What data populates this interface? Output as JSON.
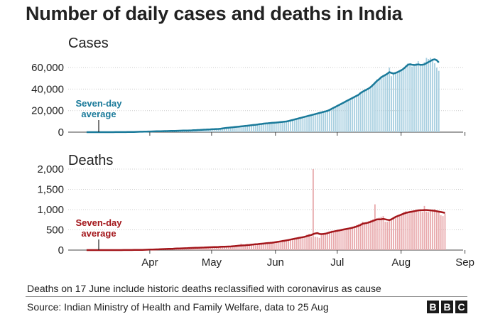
{
  "title": "Number of daily cases and deaths in India",
  "footnote": "Deaths on 17 June include historic deaths reclassified with coronavirus as cause",
  "source": "Source: Indian Ministry of Health and Family Welfare, data to 25 Aug",
  "logo": [
    "B",
    "B",
    "C"
  ],
  "colors": {
    "cases_line": "#1a7a9a",
    "cases_bar": "#a8cfe0",
    "deaths_line": "#a3161b",
    "deaths_bar": "#e8a9ac"
  },
  "chart_data": [
    {
      "type": "bar",
      "title": "Cases",
      "annotation": [
        "Seven-day",
        "average"
      ],
      "x_start": "2020-03-01",
      "x_ticks": [
        "Apr",
        "May",
        "Jun",
        "Jul",
        "Aug",
        "Sep"
      ],
      "ylim": [
        0,
        70000
      ],
      "y_ticks": [
        0,
        20000,
        40000,
        60000
      ],
      "y_tick_labels": [
        "0",
        "20,000",
        "40,000",
        "60,000"
      ],
      "series": [
        {
          "name": "Daily cases",
          "style": "bars",
          "values": [
            0,
            0,
            1,
            0,
            0,
            2,
            3,
            5,
            10,
            14,
            15,
            20,
            30,
            40,
            50,
            55,
            60,
            80,
            100,
            120,
            150,
            200,
            300,
            330,
            400,
            450,
            480,
            500,
            550,
            600,
            650,
            700,
            750,
            800,
            850,
            900,
            950,
            1000,
            1050,
            1100,
            1150,
            1200,
            1250,
            1300,
            1350,
            1400,
            1450,
            1500,
            1550,
            1600,
            1700,
            1800,
            1900,
            2000,
            2100,
            2200,
            2300,
            2400,
            2500,
            2600,
            2700,
            2800,
            2900,
            3000,
            3100,
            3300,
            3600,
            3900,
            4100,
            4200,
            4400,
            4600,
            4800,
            5000,
            5200,
            5400,
            5600,
            5800,
            6000,
            6300,
            6600,
            6800,
            7000,
            7200,
            7500,
            7700,
            8000,
            8200,
            8300,
            8500,
            8700,
            8900,
            9000,
            9200,
            9400,
            9600,
            9800,
            10000,
            10500,
            11000,
            11500,
            12000,
            12500,
            13000,
            13500,
            14000,
            14500,
            15000,
            15500,
            16000,
            16500,
            17000,
            17500,
            18000,
            18500,
            19000,
            19500,
            20000,
            21000,
            22000,
            23000,
            24000,
            25000,
            26000,
            27000,
            28000,
            29000,
            30000,
            31000,
            32000,
            33000,
            34000,
            35000,
            37000,
            38000,
            39000,
            40000,
            41000,
            43000,
            45000,
            47000,
            49000,
            50000,
            52000,
            53000,
            54000,
            55000,
            60000,
            52000,
            54000,
            55000,
            56000,
            57000,
            58000,
            60000,
            62000,
            64000,
            63000,
            61000,
            62000,
            64000,
            66000,
            62000,
            63000,
            65000,
            69000,
            68000,
            69000,
            68000,
            64000,
            60000,
            57000
          ]
        },
        {
          "name": "Seven-day average",
          "style": "line",
          "values": [
            0,
            0,
            0,
            0,
            0,
            1,
            2,
            4,
            7,
            10,
            13,
            16,
            22,
            30,
            38,
            46,
            53,
            63,
            78,
            94,
            114,
            140,
            180,
            225,
            280,
            330,
            380,
            420,
            470,
            520,
            570,
            620,
            670,
            720,
            770,
            820,
            870,
            920,
            970,
            1020,
            1070,
            1120,
            1170,
            1220,
            1270,
            1320,
            1370,
            1420,
            1470,
            1520,
            1590,
            1680,
            1780,
            1880,
            1980,
            2080,
            2180,
            2280,
            2380,
            2480,
            2580,
            2680,
            2780,
            2880,
            2980,
            3140,
            3410,
            3700,
            3960,
            4140,
            4340,
            4540,
            4740,
            4940,
            5140,
            5340,
            5540,
            5740,
            5940,
            6210,
            6490,
            6700,
            6900,
            7100,
            7390,
            7600,
            7900,
            8100,
            8230,
            8420,
            8620,
            8800,
            8930,
            9120,
            9320,
            9500,
            9700,
            9900,
            10300,
            10800,
            11300,
            11800,
            12300,
            12800,
            13300,
            13800,
            14300,
            14800,
            15300,
            15800,
            16300,
            16800,
            17300,
            17800,
            18300,
            18800,
            19300,
            19800,
            20700,
            21700,
            22700,
            23700,
            24700,
            25700,
            26700,
            27700,
            28700,
            29700,
            30700,
            31700,
            32700,
            33700,
            34700,
            36400,
            37600,
            38600,
            39600,
            40600,
            42000,
            43800,
            45700,
            47700,
            49100,
            50900,
            52100,
            53100,
            54300,
            55800,
            55000,
            54500,
            55000,
            55800,
            56800,
            57800,
            59100,
            60900,
            62600,
            63100,
            62700,
            62500,
            62600,
            63000,
            62600,
            62700,
            63000,
            64100,
            65200,
            66200,
            67300,
            67700,
            66800,
            64700
          ]
        }
      ]
    },
    {
      "type": "bar",
      "title": "Deaths",
      "annotation": [
        "Seven-day",
        "average"
      ],
      "x_start": "2020-03-01",
      "x_ticks": [
        "Apr",
        "May",
        "Jun",
        "Jul",
        "Aug",
        "Sep"
      ],
      "ylim": [
        0,
        2000
      ],
      "y_ticks": [
        0,
        500,
        1000,
        1500,
        2000
      ],
      "y_tick_labels": [
        "0",
        "500",
        "1,000",
        "1,500",
        "2,000"
      ],
      "series": [
        {
          "name": "Daily deaths",
          "style": "bars",
          "values": [
            0,
            0,
            0,
            0,
            0,
            0,
            0,
            0,
            0,
            0,
            0,
            0,
            0,
            0,
            0,
            0,
            0,
            0,
            1,
            1,
            2,
            2,
            3,
            3,
            4,
            5,
            6,
            8,
            10,
            12,
            14,
            16,
            18,
            20,
            22,
            24,
            26,
            28,
            30,
            32,
            34,
            36,
            38,
            40,
            42,
            44,
            46,
            48,
            50,
            52,
            54,
            56,
            58,
            60,
            62,
            64,
            66,
            68,
            70,
            72,
            74,
            76,
            78,
            80,
            82,
            84,
            86,
            88,
            90,
            92,
            95,
            100,
            105,
            110,
            115,
            160,
            120,
            125,
            130,
            135,
            140,
            145,
            150,
            155,
            160,
            165,
            170,
            175,
            180,
            185,
            190,
            200,
            210,
            220,
            230,
            240,
            250,
            260,
            270,
            280,
            290,
            300,
            310,
            320,
            330,
            340,
            350,
            380,
            400,
            330,
            2000,
            330,
            320,
            300,
            380,
            420,
            430,
            440,
            460,
            480,
            470,
            490,
            500,
            510,
            520,
            530,
            540,
            550,
            560,
            580,
            600,
            620,
            640,
            660,
            700,
            640,
            680,
            720,
            740,
            760,
            1130,
            780,
            800,
            820,
            840,
            700,
            700,
            720,
            760,
            800,
            840,
            860,
            880,
            900,
            940,
            960,
            920,
            940,
            960,
            980,
            1000,
            980,
            960,
            940,
            1090,
            950,
            940,
            960,
            1000,
            1010,
            970,
            960,
            860,
            840,
            900
          ]
        },
        {
          "name": "Seven-day average",
          "style": "line",
          "values": [
            0,
            0,
            0,
            0,
            0,
            0,
            0,
            0,
            0,
            0,
            0,
            0,
            0,
            0,
            0,
            0,
            0,
            0,
            1,
            1,
            1,
            2,
            2,
            3,
            3,
            4,
            5,
            6,
            7,
            8,
            10,
            12,
            14,
            16,
            18,
            20,
            22,
            24,
            26,
            28,
            30,
            32,
            34,
            36,
            38,
            40,
            42,
            44,
            46,
            48,
            50,
            52,
            54,
            56,
            58,
            60,
            62,
            64,
            66,
            68,
            70,
            72,
            74,
            76,
            78,
            80,
            82,
            84,
            86,
            88,
            90,
            94,
            98,
            104,
            108,
            112,
            116,
            120,
            124,
            128,
            133,
            138,
            143,
            148,
            153,
            158,
            163,
            168,
            173,
            178,
            183,
            190,
            198,
            206,
            214,
            222,
            230,
            240,
            250,
            260,
            270,
            280,
            290,
            300,
            310,
            320,
            330,
            345,
            360,
            372,
            395,
            410,
            420,
            400,
            395,
            398,
            405,
            420,
            435,
            450,
            460,
            470,
            480,
            490,
            500,
            510,
            520,
            530,
            540,
            550,
            565,
            580,
            600,
            620,
            650,
            660,
            670,
            680,
            700,
            720,
            740,
            760,
            760,
            760,
            770,
            760,
            750,
            740,
            760,
            790,
            820,
            840,
            860,
            880,
            900,
            920,
            930,
            940,
            950,
            960,
            970,
            980,
            985,
            985,
            990,
            990,
            985,
            980,
            975,
            970,
            960,
            950,
            940,
            930,
            920
          ]
        }
      ]
    }
  ]
}
